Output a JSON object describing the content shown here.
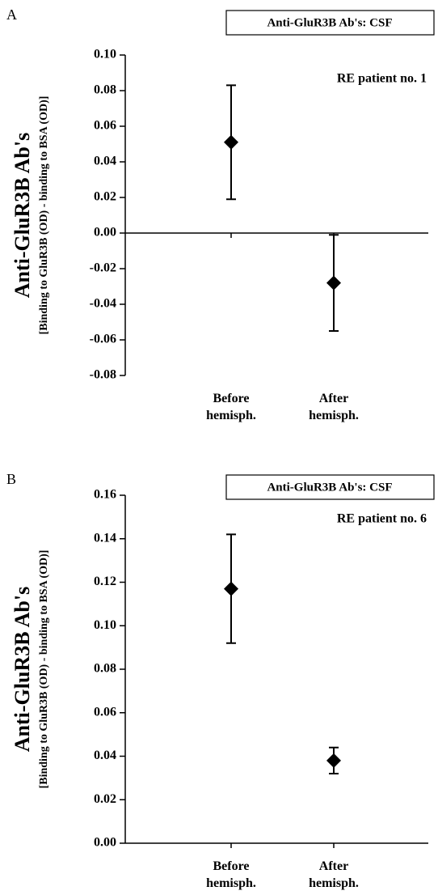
{
  "chart_data": [
    {
      "type": "errorbar",
      "panel": "A",
      "title": "Anti-GluR3B Ab's: CSF",
      "annotation": "RE patient no. 1",
      "ylabel": "Anti-GluR3B Ab's",
      "ylabel_sub": "[Binding to GluR3B (OD) - binding to BSA (OD)]",
      "categories": [
        "Before\nhemisph.",
        "After\nhemisph."
      ],
      "series": [
        {
          "color": "#000000",
          "values": [
            0.051,
            -0.028
          ],
          "errors": [
            0.032,
            0.027
          ]
        }
      ],
      "ylim": [
        -0.08,
        0.1
      ],
      "yticks": [
        {
          "value": -0.08,
          "label": "-0.08"
        },
        {
          "value": -0.06,
          "label": "-0.06"
        },
        {
          "value": -0.04,
          "label": "-0.04"
        },
        {
          "value": -0.02,
          "label": "-0.02"
        },
        {
          "value": 0,
          "label": "0.00"
        },
        {
          "value": 0.02,
          "label": "0.02"
        },
        {
          "value": 0.04,
          "label": "0.04"
        },
        {
          "value": 0.06,
          "label": "0.06"
        },
        {
          "value": 0.08,
          "label": "0.08"
        },
        {
          "value": 0.1,
          "label": "0.10"
        }
      ]
    },
    {
      "type": "errorbar",
      "panel": "B",
      "title": "Anti-GluR3B Ab's: CSF",
      "annotation": "RE patient no. 6",
      "ylabel": "Anti-GluR3B Ab's",
      "ylabel_sub": "[Binding to GluR3B (OD) - binding to BSA (OD)]",
      "categories": [
        "Before\nhemisph.",
        "After\nhemisph."
      ],
      "series": [
        {
          "color": "#000000",
          "values": [
            0.117,
            0.038
          ],
          "errors": [
            0.025,
            0.006
          ]
        }
      ],
      "ylim": [
        0,
        0.16
      ],
      "yticks": [
        {
          "value": 0,
          "label": "0.00"
        },
        {
          "value": 0.02,
          "label": "0.02"
        },
        {
          "value": 0.04,
          "label": "0.04"
        },
        {
          "value": 0.06,
          "label": "0.06"
        },
        {
          "value": 0.08,
          "label": "0.08"
        },
        {
          "value": 0.1,
          "label": "0.10"
        },
        {
          "value": 0.12,
          "label": "0.12"
        },
        {
          "value": 0.14,
          "label": "0.14"
        },
        {
          "value": 0.16,
          "label": "0.16"
        }
      ]
    }
  ]
}
